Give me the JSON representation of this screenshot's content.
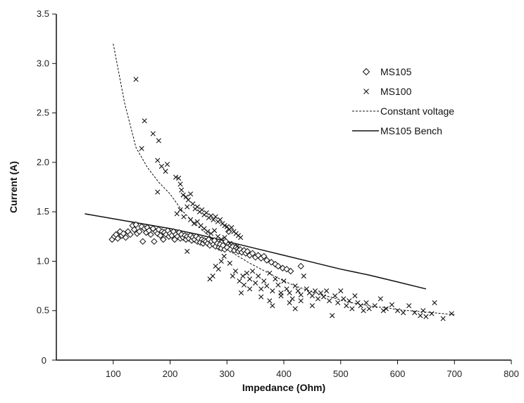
{
  "chart_data": {
    "type": "scatter",
    "title": "",
    "xlabel": "Impedance (Ohm)",
    "ylabel": "Current (A)",
    "xlim": [
      0,
      800
    ],
    "ylim": [
      0,
      3.5
    ],
    "xticks": [
      100,
      200,
      300,
      400,
      500,
      600,
      700,
      800
    ],
    "yticks": [
      0,
      0.5,
      1.0,
      1.5,
      2.0,
      2.5,
      3.0,
      3.5
    ],
    "ytick_labels": [
      "0",
      "0.5",
      "1.0",
      "1.5",
      "2.0",
      "2.5",
      "3.0",
      "3.5"
    ],
    "grid": false,
    "legend_position": "top-right",
    "colors": {
      "ink": "#111111"
    },
    "series": [
      {
        "name": "MS105",
        "kind": "scatter",
        "marker": "diamond",
        "points": [
          [
            98,
            1.22
          ],
          [
            102,
            1.25
          ],
          [
            105,
            1.27
          ],
          [
            108,
            1.23
          ],
          [
            112,
            1.3
          ],
          [
            115,
            1.26
          ],
          [
            118,
            1.28
          ],
          [
            122,
            1.24
          ],
          [
            126,
            1.3
          ],
          [
            130,
            1.27
          ],
          [
            134,
            1.36
          ],
          [
            137,
            1.32
          ],
          [
            140,
            1.37
          ],
          [
            142,
            1.28
          ],
          [
            146,
            1.3
          ],
          [
            150,
            1.35
          ],
          [
            152,
            1.2
          ],
          [
            155,
            1.33
          ],
          [
            158,
            1.29
          ],
          [
            160,
            1.34
          ],
          [
            163,
            1.31
          ],
          [
            166,
            1.27
          ],
          [
            170,
            1.33
          ],
          [
            172,
            1.2
          ],
          [
            175,
            1.3
          ],
          [
            178,
            1.28
          ],
          [
            180,
            1.32
          ],
          [
            183,
            1.26
          ],
          [
            186,
            1.3
          ],
          [
            188,
            1.22
          ],
          [
            190,
            1.29
          ],
          [
            193,
            1.27
          ],
          [
            196,
            1.31
          ],
          [
            198,
            1.25
          ],
          [
            200,
            1.28
          ],
          [
            203,
            1.26
          ],
          [
            206,
            1.3
          ],
          [
            208,
            1.22
          ],
          [
            210,
            1.27
          ],
          [
            213,
            1.25
          ],
          [
            216,
            1.29
          ],
          [
            218,
            1.23
          ],
          [
            220,
            1.27
          ],
          [
            223,
            1.24
          ],
          [
            226,
            1.26
          ],
          [
            228,
            1.22
          ],
          [
            230,
            1.25
          ],
          [
            233,
            1.23
          ],
          [
            236,
            1.26
          ],
          [
            238,
            1.21
          ],
          [
            240,
            1.24
          ],
          [
            243,
            1.22
          ],
          [
            246,
            1.25
          ],
          [
            248,
            1.2
          ],
          [
            250,
            1.23
          ],
          [
            253,
            1.19
          ],
          [
            256,
            1.22
          ],
          [
            258,
            1.18
          ],
          [
            260,
            1.21
          ],
          [
            263,
            1.2
          ],
          [
            266,
            1.18
          ],
          [
            268,
            1.22
          ],
          [
            270,
            1.16
          ],
          [
            273,
            1.2
          ],
          [
            276,
            1.17
          ],
          [
            278,
            1.21
          ],
          [
            280,
            1.15
          ],
          [
            283,
            1.18
          ],
          [
            286,
            1.14
          ],
          [
            288,
            1.17
          ],
          [
            290,
            1.13
          ],
          [
            293,
            1.16
          ],
          [
            296,
            1.12
          ],
          [
            298,
            1.2
          ],
          [
            300,
            1.14
          ],
          [
            303,
            1.3
          ],
          [
            306,
            1.12
          ],
          [
            310,
            1.15
          ],
          [
            313,
            1.11
          ],
          [
            316,
            1.14
          ],
          [
            320,
            1.1
          ],
          [
            323,
            1.12
          ],
          [
            326,
            1.09
          ],
          [
            330,
            1.11
          ],
          [
            333,
            1.08
          ],
          [
            336,
            1.1
          ],
          [
            340,
            1.06
          ],
          [
            345,
            1.08
          ],
          [
            350,
            1.04
          ],
          [
            355,
            1.06
          ],
          [
            360,
            1.03
          ],
          [
            365,
            1.05
          ],
          [
            370,
            1.01
          ],
          [
            378,
            0.99
          ],
          [
            385,
            0.97
          ],
          [
            390,
            0.95
          ],
          [
            398,
            0.93
          ],
          [
            405,
            0.92
          ],
          [
            412,
            0.9
          ],
          [
            430,
            0.95
          ]
        ]
      },
      {
        "name": "MS100",
        "kind": "scatter",
        "marker": "x",
        "points": [
          [
            140,
            2.84
          ],
          [
            155,
            2.42
          ],
          [
            170,
            2.29
          ],
          [
            180,
            2.22
          ],
          [
            178,
            2.02
          ],
          [
            185,
            1.96
          ],
          [
            195,
            1.98
          ],
          [
            192,
            1.91
          ],
          [
            150,
            2.14
          ],
          [
            178,
            1.7
          ],
          [
            210,
            1.85
          ],
          [
            215,
            1.84
          ],
          [
            218,
            1.78
          ],
          [
            220,
            1.72
          ],
          [
            223,
            1.67
          ],
          [
            228,
            1.65
          ],
          [
            232,
            1.62
          ],
          [
            236,
            1.68
          ],
          [
            240,
            1.58
          ],
          [
            244,
            1.53
          ],
          [
            248,
            1.55
          ],
          [
            252,
            1.5
          ],
          [
            256,
            1.52
          ],
          [
            260,
            1.47
          ],
          [
            264,
            1.49
          ],
          [
            268,
            1.44
          ],
          [
            272,
            1.46
          ],
          [
            276,
            1.42
          ],
          [
            280,
            1.45
          ],
          [
            284,
            1.4
          ],
          [
            288,
            1.42
          ],
          [
            292,
            1.38
          ],
          [
            296,
            1.36
          ],
          [
            300,
            1.35
          ],
          [
            304,
            1.32
          ],
          [
            308,
            1.34
          ],
          [
            312,
            1.3
          ],
          [
            316,
            1.28
          ],
          [
            320,
            1.26
          ],
          [
            324,
            1.24
          ],
          [
            212,
            1.48
          ],
          [
            218,
            1.52
          ],
          [
            224,
            1.45
          ],
          [
            230,
            1.55
          ],
          [
            236,
            1.42
          ],
          [
            242,
            1.38
          ],
          [
            248,
            1.4
          ],
          [
            254,
            1.36
          ],
          [
            260,
            1.33
          ],
          [
            266,
            1.3
          ],
          [
            272,
            1.28
          ],
          [
            278,
            1.31
          ],
          [
            284,
            1.25
          ],
          [
            290,
            1.22
          ],
          [
            296,
            1.24
          ],
          [
            230,
            1.1
          ],
          [
            270,
            0.82
          ],
          [
            275,
            0.85
          ],
          [
            280,
            0.95
          ],
          [
            285,
            0.92
          ],
          [
            290,
            1.0
          ],
          [
            295,
            1.05
          ],
          [
            305,
            0.98
          ],
          [
            310,
            0.85
          ],
          [
            315,
            0.9
          ],
          [
            322,
            0.8
          ],
          [
            328,
            0.85
          ],
          [
            330,
            0.76
          ],
          [
            335,
            0.88
          ],
          [
            340,
            0.82
          ],
          [
            345,
            0.9
          ],
          [
            350,
            0.78
          ],
          [
            355,
            0.85
          ],
          [
            360,
            0.72
          ],
          [
            365,
            0.8
          ],
          [
            370,
            0.75
          ],
          [
            375,
            0.88
          ],
          [
            380,
            0.7
          ],
          [
            385,
            0.82
          ],
          [
            390,
            0.76
          ],
          [
            395,
            0.65
          ],
          [
            400,
            0.8
          ],
          [
            405,
            0.72
          ],
          [
            410,
            0.68
          ],
          [
            415,
            0.62
          ],
          [
            420,
            0.75
          ],
          [
            425,
            0.7
          ],
          [
            430,
            0.66
          ],
          [
            435,
            0.85
          ],
          [
            440,
            0.72
          ],
          [
            445,
            0.68
          ],
          [
            450,
            0.65
          ],
          [
            455,
            0.7
          ],
          [
            460,
            0.62
          ],
          [
            465,
            0.68
          ],
          [
            470,
            0.64
          ],
          [
            475,
            0.7
          ],
          [
            480,
            0.6
          ],
          [
            485,
            0.45
          ],
          [
            490,
            0.65
          ],
          [
            495,
            0.58
          ],
          [
            500,
            0.7
          ],
          [
            505,
            0.62
          ],
          [
            510,
            0.55
          ],
          [
            515,
            0.6
          ],
          [
            520,
            0.52
          ],
          [
            525,
            0.65
          ],
          [
            530,
            0.58
          ],
          [
            535,
            0.55
          ],
          [
            540,
            0.5
          ],
          [
            545,
            0.58
          ],
          [
            550,
            0.52
          ],
          [
            560,
            0.55
          ],
          [
            570,
            0.62
          ],
          [
            575,
            0.5
          ],
          [
            580,
            0.52
          ],
          [
            590,
            0.56
          ],
          [
            600,
            0.5
          ],
          [
            610,
            0.48
          ],
          [
            620,
            0.55
          ],
          [
            630,
            0.48
          ],
          [
            640,
            0.45
          ],
          [
            645,
            0.5
          ],
          [
            650,
            0.44
          ],
          [
            660,
            0.47
          ],
          [
            665,
            0.58
          ],
          [
            680,
            0.42
          ],
          [
            695,
            0.47
          ],
          [
            325,
            0.68
          ],
          [
            340,
            0.72
          ],
          [
            360,
            0.64
          ],
          [
            375,
            0.6
          ],
          [
            380,
            0.55
          ],
          [
            395,
            0.68
          ],
          [
            410,
            0.58
          ],
          [
            420,
            0.52
          ],
          [
            430,
            0.6
          ],
          [
            450,
            0.55
          ],
          [
            305,
            1.18
          ],
          [
            318,
            1.15
          ]
        ]
      },
      {
        "name": "Constant voltage",
        "kind": "line",
        "style": "dashed",
        "points": [
          [
            100,
            3.2
          ],
          [
            120,
            2.6
          ],
          [
            140,
            2.15
          ],
          [
            160,
            1.95
          ],
          [
            180,
            1.8
          ],
          [
            200,
            1.68
          ],
          [
            220,
            1.52
          ],
          [
            240,
            1.4
          ],
          [
            260,
            1.3
          ],
          [
            280,
            1.2
          ],
          [
            300,
            1.12
          ],
          [
            320,
            1.05
          ],
          [
            340,
            0.98
          ],
          [
            360,
            0.92
          ],
          [
            380,
            0.86
          ],
          [
            400,
            0.8
          ],
          [
            420,
            0.75
          ],
          [
            440,
            0.71
          ],
          [
            460,
            0.67
          ],
          [
            480,
            0.64
          ],
          [
            500,
            0.61
          ],
          [
            520,
            0.58
          ],
          [
            540,
            0.56
          ],
          [
            560,
            0.54
          ],
          [
            580,
            0.53
          ],
          [
            600,
            0.51
          ],
          [
            620,
            0.5
          ],
          [
            640,
            0.49
          ],
          [
            660,
            0.48
          ],
          [
            680,
            0.47
          ],
          [
            700,
            0.46
          ]
        ]
      },
      {
        "name": "MS105 Bench",
        "kind": "line",
        "style": "solid",
        "points": [
          [
            50,
            1.48
          ],
          [
            100,
            1.43
          ],
          [
            150,
            1.38
          ],
          [
            200,
            1.33
          ],
          [
            250,
            1.27
          ],
          [
            300,
            1.2
          ],
          [
            350,
            1.13
          ],
          [
            400,
            1.06
          ],
          [
            450,
            0.99
          ],
          [
            500,
            0.92
          ],
          [
            550,
            0.86
          ],
          [
            600,
            0.79
          ],
          [
            650,
            0.72
          ]
        ]
      }
    ]
  }
}
